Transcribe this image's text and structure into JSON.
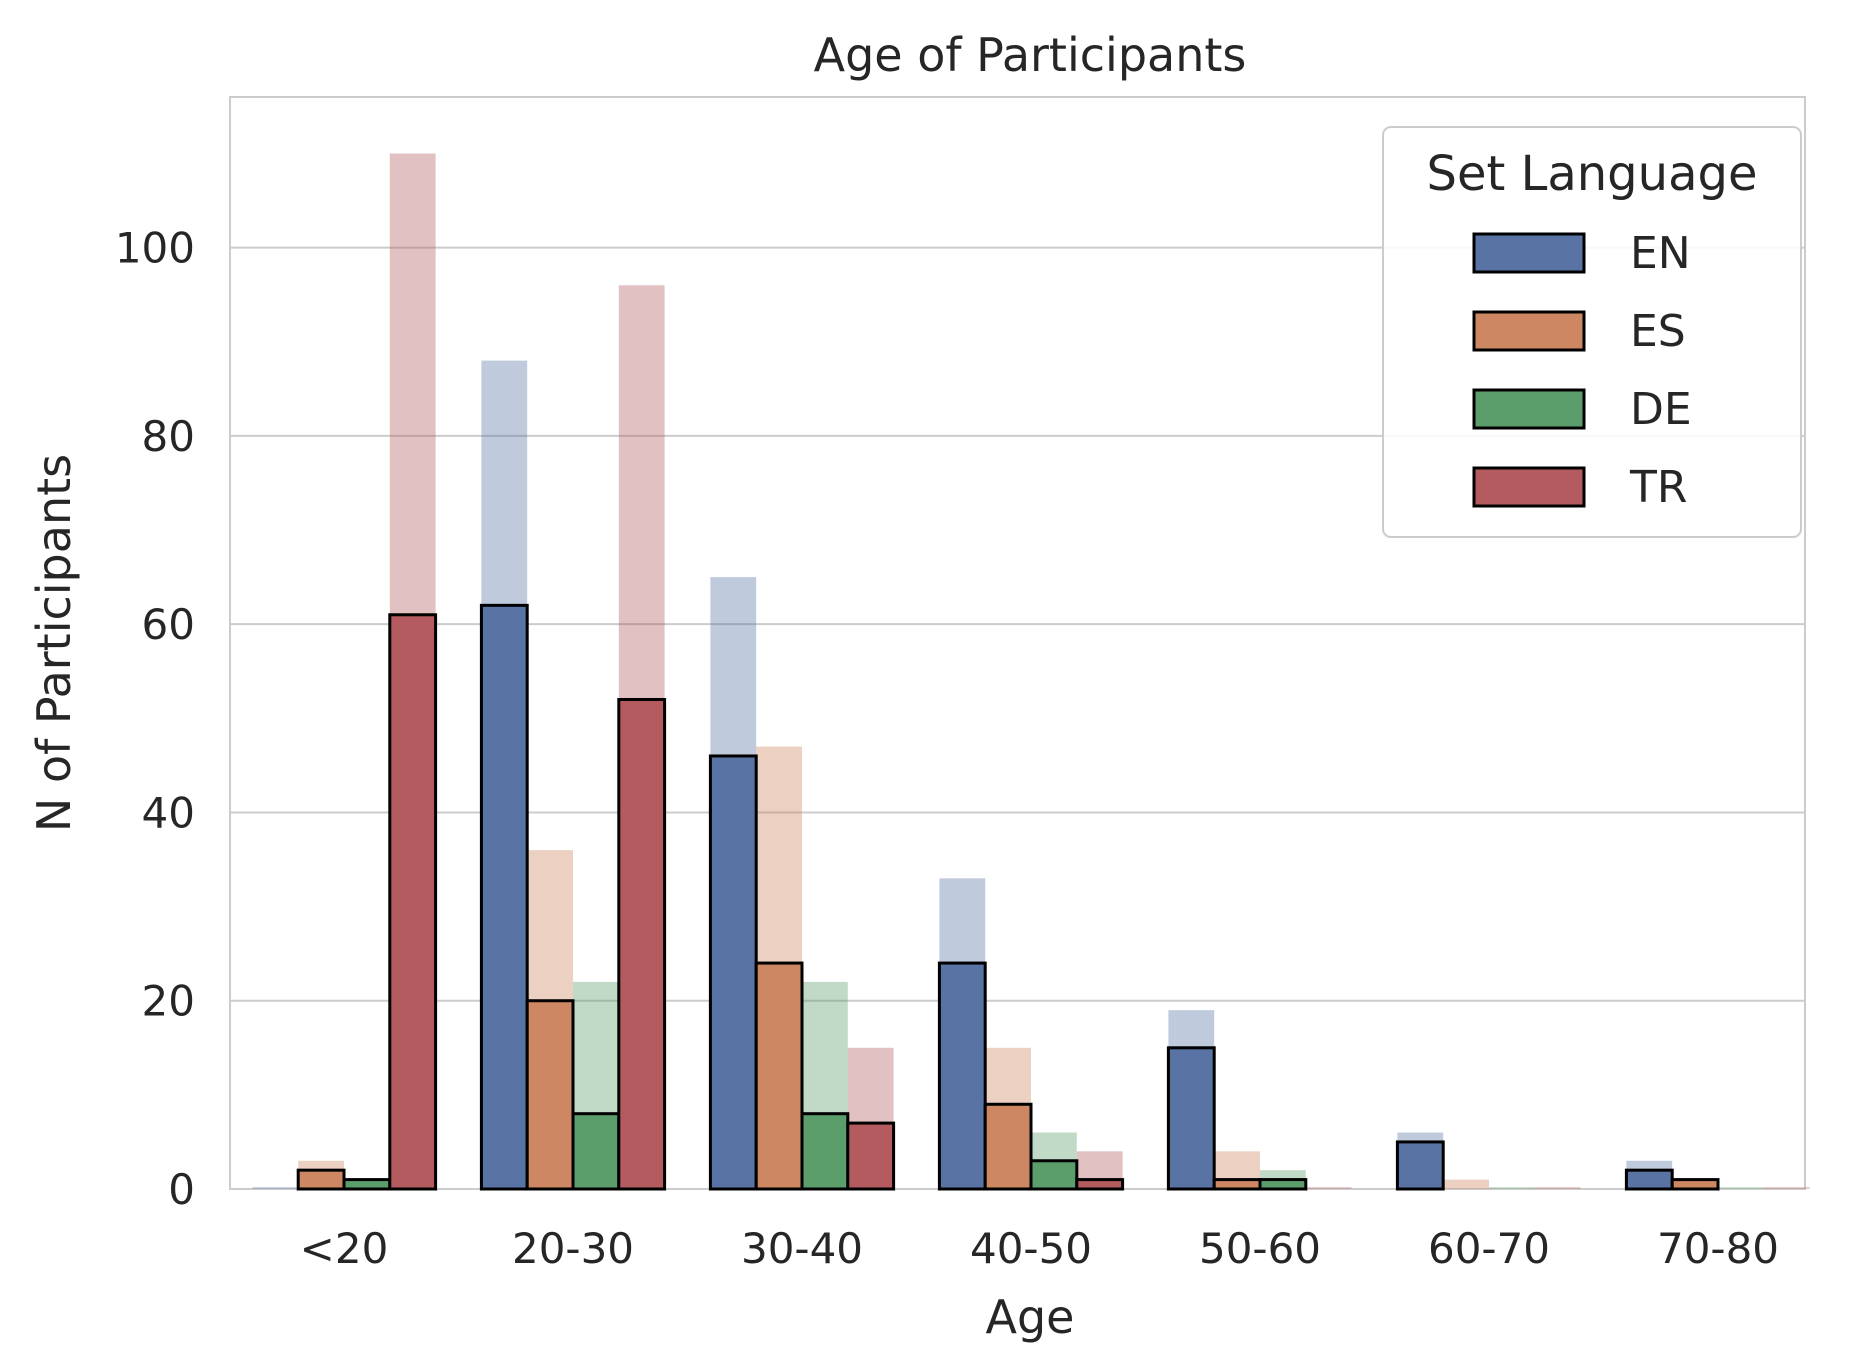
{
  "chart_data": {
    "type": "bar",
    "title": "Age of Participants",
    "xlabel": "Age",
    "ylabel": "N of Participants",
    "categories": [
      "<20",
      "20-30",
      "30-40",
      "40-50",
      "50-60",
      "60-70",
      "70-80"
    ],
    "ylim": [
      0,
      116
    ],
    "yticks": [
      0,
      20,
      40,
      60,
      80,
      100
    ],
    "grid": true,
    "legend": {
      "title": "Set Language",
      "placement": "top-right"
    },
    "series": [
      {
        "name": "EN",
        "color": "#5873a4",
        "values": [
          0,
          62,
          46,
          24,
          15,
          5,
          2
        ],
        "background_values": [
          0,
          88,
          65,
          33,
          19,
          6,
          3
        ]
      },
      {
        "name": "ES",
        "color": "#cd8762",
        "values": [
          2,
          20,
          24,
          9,
          1,
          0,
          1
        ],
        "background_values": [
          3,
          36,
          47,
          15,
          4,
          1,
          1
        ]
      },
      {
        "name": "DE",
        "color": "#5b9e6c",
        "values": [
          1,
          8,
          8,
          3,
          1,
          0,
          0
        ],
        "background_values": [
          0,
          22,
          22,
          6,
          2,
          0,
          0
        ]
      },
      {
        "name": "TR",
        "color": "#b35b5e",
        "values": [
          61,
          52,
          7,
          1,
          0,
          0,
          0
        ],
        "background_values": [
          110,
          96,
          15,
          4,
          0,
          0,
          0
        ]
      }
    ]
  }
}
